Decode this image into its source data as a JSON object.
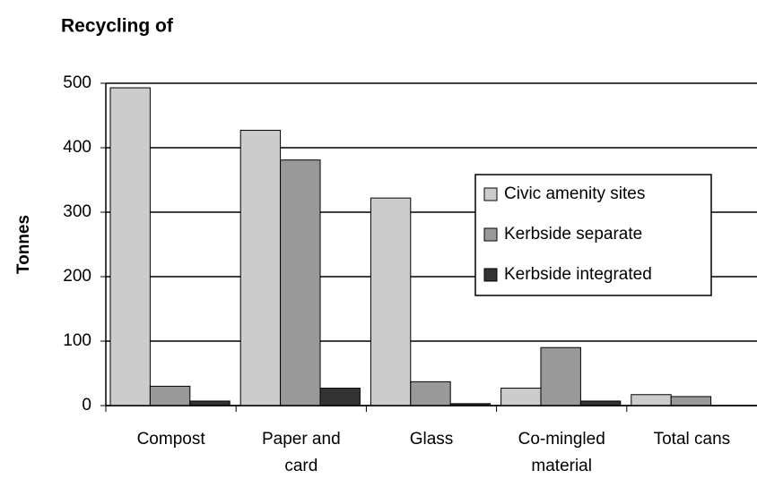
{
  "chart_data": {
    "type": "bar",
    "title": "Recycling of",
    "y_label": "Tonnes",
    "categories": [
      "Compost",
      "Paper and card",
      "Glass",
      "Co-mingled material",
      "Total cans"
    ],
    "series": [
      {
        "name": "Civic amenity sites",
        "color": "#cccccc",
        "values": [
          493,
          427,
          322,
          27,
          17
        ]
      },
      {
        "name": "Kerbside separate",
        "color": "#999999",
        "values": [
          30,
          381,
          37,
          90,
          14
        ]
      },
      {
        "name": "Kerbside integrated",
        "color": "#333333",
        "values": [
          7,
          27,
          3,
          7,
          0
        ]
      }
    ],
    "ylim": [
      0,
      500
    ],
    "yticks": [
      0,
      100,
      200,
      300,
      400,
      500
    ],
    "grid": true,
    "legend": "right"
  }
}
